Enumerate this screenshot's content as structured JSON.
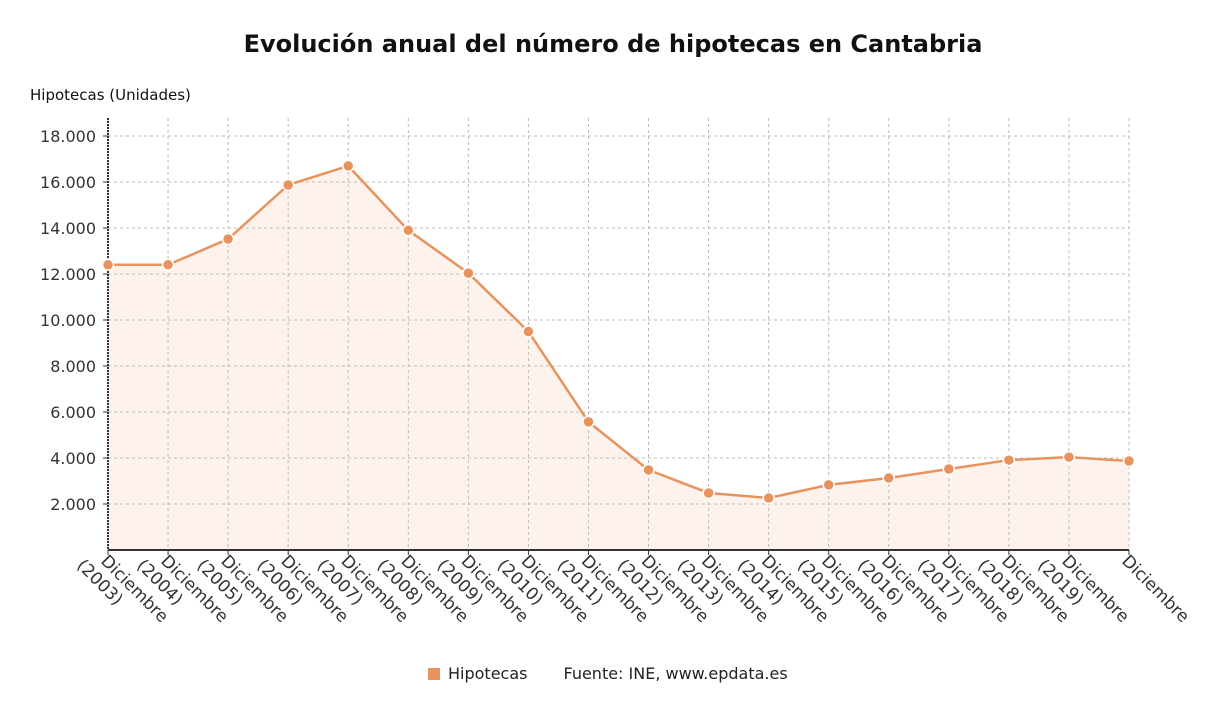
{
  "chart_data": {
    "type": "line",
    "title": "Evolución anual del número de hipotecas en Cantabria",
    "ylabel": "Hipotecas (Unidades)",
    "xlabel": "",
    "x": [
      "Diciembre (2003)",
      "Diciembre (2004)",
      "Diciembre (2005)",
      "Diciembre (2006)",
      "Diciembre (2007)",
      "Diciembre (2008)",
      "Diciembre (2009)",
      "Diciembre (2010)",
      "Diciembre (2011)",
      "Diciembre (2012)",
      "Diciembre (2013)",
      "Diciembre (2014)",
      "Diciembre (2015)",
      "Diciembre (2016)",
      "Diciembre (2017)",
      "Diciembre (2018)",
      "Diciembre (2019)",
      "Diciembre"
    ],
    "x_tick_lines": [
      [
        "Diciembre",
        "(2003)"
      ],
      [
        "Diciembre",
        "(2004)"
      ],
      [
        "Diciembre",
        "(2005)"
      ],
      [
        "Diciembre",
        "(2006)"
      ],
      [
        "Diciembre",
        "(2007)"
      ],
      [
        "Diciembre",
        "(2008)"
      ],
      [
        "Diciembre",
        "(2009)"
      ],
      [
        "Diciembre",
        "(2010)"
      ],
      [
        "Diciembre",
        "(2011)"
      ],
      [
        "Diciembre",
        "(2012)"
      ],
      [
        "Diciembre",
        "(2013)"
      ],
      [
        "Diciembre",
        "(2014)"
      ],
      [
        "Diciembre",
        "(2015)"
      ],
      [
        "Diciembre",
        "(2016)"
      ],
      [
        "Diciembre",
        "(2017)"
      ],
      [
        "Diciembre",
        "(2018)"
      ],
      [
        "Diciembre",
        "(2019)"
      ],
      [
        "Diciembre"
      ]
    ],
    "series": [
      {
        "name": "Hipotecas",
        "color": "#e8935e",
        "values": [
          12400,
          12400,
          13520,
          15870,
          16700,
          13900,
          12040,
          9500,
          5570,
          3480,
          2480,
          2260,
          2830,
          3130,
          3520,
          3910,
          4040,
          3870
        ]
      }
    ],
    "ylim": [
      0,
      18000
    ],
    "yticks": [
      2000,
      4000,
      6000,
      8000,
      10000,
      12000,
      14000,
      16000,
      18000
    ],
    "ytick_labels": [
      "2.000",
      "4.000",
      "6.000",
      "8.000",
      "10.000",
      "12.000",
      "14.000",
      "16.000",
      "18.000"
    ],
    "grid": true,
    "legend_position": "bottom",
    "fill_color": "#fdf3ec"
  },
  "source": "Fuente: INE, www.epdata.es"
}
